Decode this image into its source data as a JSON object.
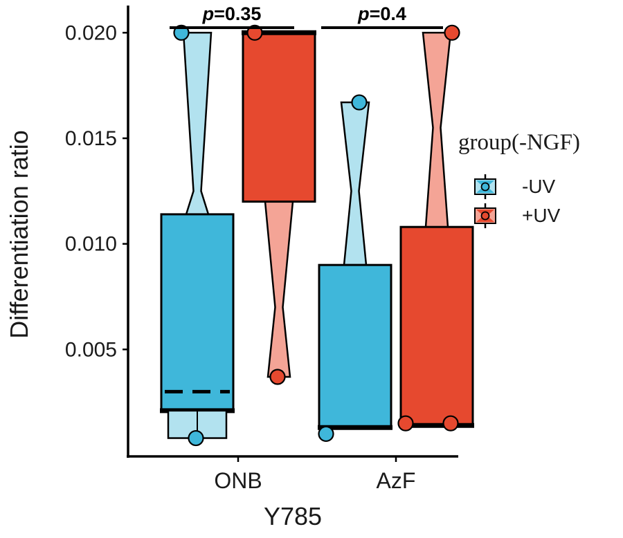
{
  "chart_data": {
    "type": "boxplot",
    "title": "",
    "xlabel": "Y785",
    "ylabel": "Differentiation ratio",
    "ylim": [
      0.0,
      0.0213
    ],
    "yticks": [
      "0.005",
      "0.010",
      "0.015",
      "0.020"
    ],
    "ytick_values": [
      0.005,
      0.01,
      0.015,
      0.02
    ],
    "categories": [
      "ONB",
      "AzF"
    ],
    "grid": false,
    "legend_position": "right-outside",
    "legend": {
      "title": "group(-NGF)",
      "entries": [
        {
          "label": "-UV",
          "color": "#3FB7DA",
          "light": "#B2E2EF"
        },
        {
          "label": "+UV",
          "color": "#E6492F",
          "light": "#F4A496"
        }
      ]
    },
    "annotations": [
      {
        "symbol": "p",
        "rest": "=0.35",
        "category": "ONB"
      },
      {
        "symbol": "p",
        "rest": "=0.4",
        "category": "AzF"
      }
    ],
    "boxes": [
      {
        "category": "ONB",
        "series": "-UV",
        "wide_box": {
          "top": 0.0114,
          "bottom": 0.0021,
          "thick_bottom": true
        },
        "dashed_line": 0.003,
        "sub_box": {
          "top": 0.0021,
          "bottom": 0.0008
        },
        "hourglass": {
          "top": 0.02,
          "waist": 0.0125,
          "bottom": 0.0114
        },
        "points": [
          {
            "value": 0.02,
            "dx": -23
          },
          {
            "value": 0.0008,
            "dx": -2
          }
        ]
      },
      {
        "category": "ONB",
        "series": "+UV",
        "wide_box": {
          "top": 0.02,
          "bottom": 0.012,
          "thick_top": true
        },
        "hourglass": {
          "top": 0.012,
          "waist": 0.007,
          "bottom": 0.0037
        },
        "points": [
          {
            "value": 0.02,
            "dx": -35
          },
          {
            "value": 0.0037,
            "dx": -2
          }
        ]
      },
      {
        "category": "AzF",
        "series": "-UV",
        "wide_box": {
          "top": 0.009,
          "bottom": 0.0013,
          "thick_bottom": true
        },
        "hourglass": {
          "top": 0.0167,
          "waist": 0.0125,
          "bottom": 0.009
        },
        "points": [
          {
            "value": 0.0167,
            "dx": 6
          },
          {
            "value": 0.001,
            "dx": -42
          }
        ]
      },
      {
        "category": "AzF",
        "series": "+UV",
        "wide_box": {
          "top": 0.0108,
          "bottom": 0.0014,
          "thick_bottom": true
        },
        "hourglass": {
          "top": 0.02,
          "waist": 0.0155,
          "bottom": 0.0108
        },
        "points": [
          {
            "value": 0.02,
            "dx": 22
          },
          {
            "value": 0.0015,
            "dx": -45
          },
          {
            "value": 0.0015,
            "dx": 20
          }
        ]
      }
    ]
  }
}
